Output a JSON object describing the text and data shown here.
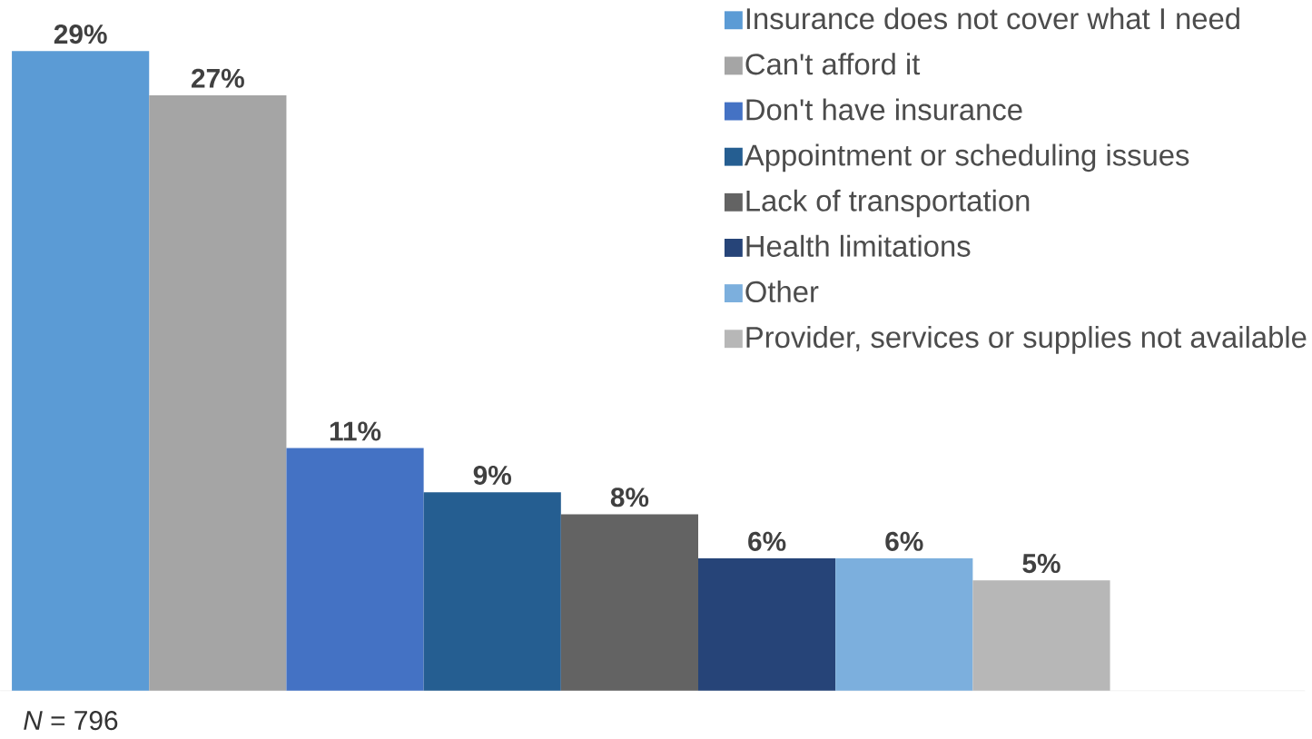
{
  "chart_data": {
    "type": "bar",
    "categories": [
      null,
      null,
      null,
      null,
      null,
      null,
      null,
      null
    ],
    "series": [
      {
        "name": "Insurance does not cover what I need",
        "color": "#5b9bd5",
        "values": [
          29,
          null,
          null,
          null,
          null,
          null,
          null,
          null
        ],
        "value_labels": [
          "29%",
          null,
          null,
          null,
          null,
          null,
          null,
          null
        ]
      },
      {
        "name": "Can't afford it",
        "color": "#a5a5a5",
        "values": [
          null,
          27,
          null,
          null,
          null,
          null,
          null,
          null
        ],
        "value_labels": [
          null,
          "27%",
          null,
          null,
          null,
          null,
          null,
          null
        ]
      },
      {
        "name": "Don't have insurance",
        "color": "#4472c4",
        "values": [
          null,
          null,
          11,
          null,
          null,
          null,
          null,
          null
        ],
        "value_labels": [
          null,
          null,
          "11%",
          null,
          null,
          null,
          null,
          null
        ]
      },
      {
        "name": "Appointment or scheduling issues",
        "color": "#255e91",
        "values": [
          null,
          null,
          null,
          9,
          null,
          null,
          null,
          null
        ],
        "value_labels": [
          null,
          null,
          null,
          "9%",
          null,
          null,
          null,
          null
        ]
      },
      {
        "name": "Lack of transportation",
        "color": "#636363",
        "values": [
          null,
          null,
          null,
          null,
          8,
          null,
          null,
          null
        ],
        "value_labels": [
          null,
          null,
          null,
          null,
          "8%",
          null,
          null,
          null
        ]
      },
      {
        "name": "Health limitations",
        "color": "#264478",
        "values": [
          null,
          null,
          null,
          null,
          null,
          6,
          null,
          null
        ],
        "value_labels": [
          null,
          null,
          null,
          null,
          null,
          "6%",
          null,
          null
        ]
      },
      {
        "name": "Other",
        "color": "#7cafdd",
        "values": [
          null,
          null,
          null,
          null,
          null,
          null,
          6,
          null
        ],
        "value_labels": [
          null,
          null,
          null,
          null,
          null,
          null,
          "6%",
          null
        ]
      },
      {
        "name": "Provider, services or supplies not available",
        "color": "#b7b7b7",
        "values": [
          null,
          null,
          null,
          null,
          null,
          null,
          null,
          5
        ],
        "value_labels": [
          null,
          null,
          null,
          null,
          null,
          null,
          null,
          "5%"
        ]
      }
    ],
    "legend": "top right",
    "stacked": true,
    "annotations": [
      "*N* = 796"
    ]
  }
}
